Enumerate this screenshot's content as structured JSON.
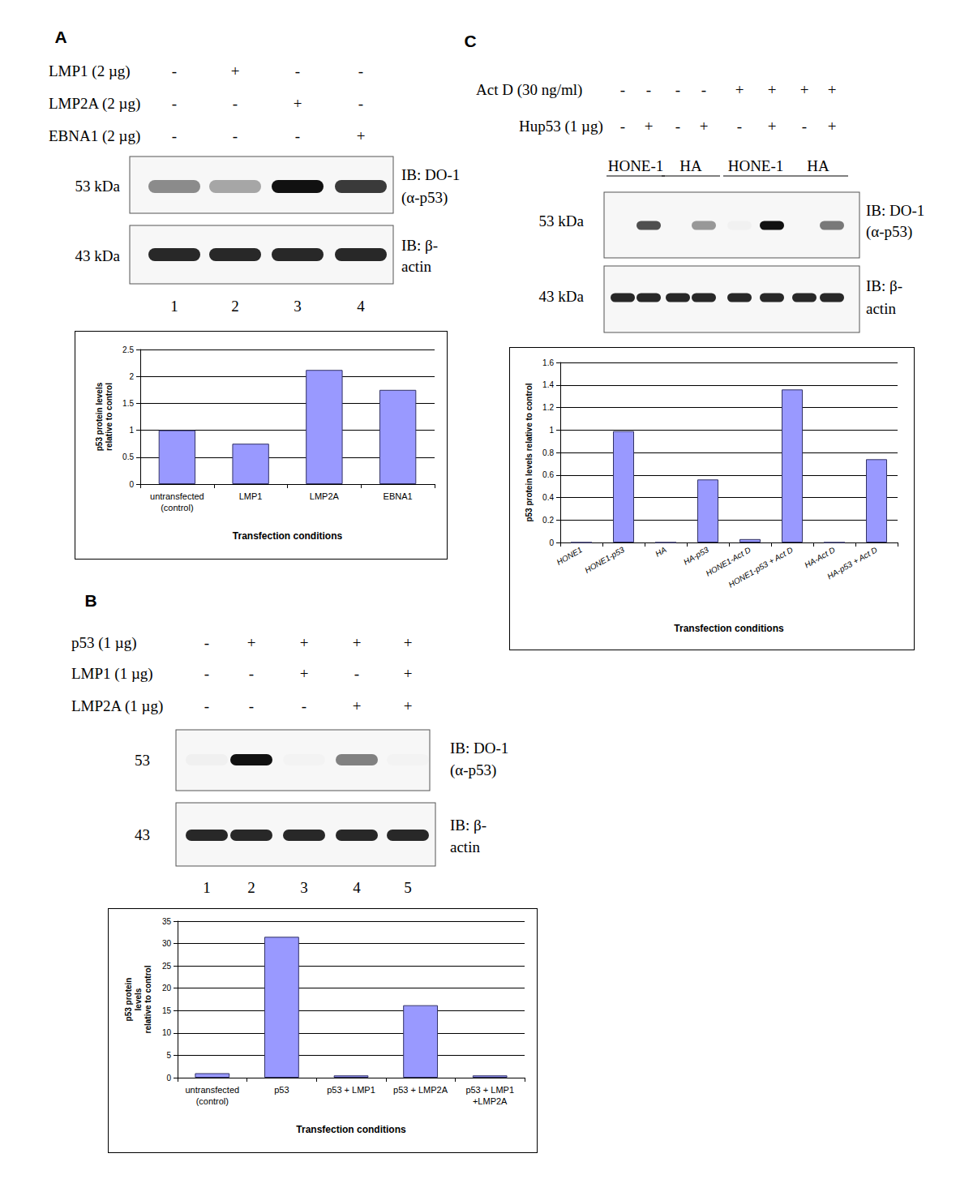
{
  "panels": [
    {
      "letter": "A",
      "treatments": [
        {
          "label": "LMP1  (2 µg)",
          "lanes": [
            "-",
            "+",
            "-",
            "-"
          ]
        },
        {
          "label": "LMP2A (2 µg)",
          "lanes": [
            "-",
            "-",
            "+",
            "-"
          ]
        },
        {
          "label": "EBNA1 (2 µg)",
          "lanes": [
            "-",
            "-",
            "-",
            "+"
          ]
        }
      ],
      "blot_rows": [
        {
          "size": "53 kDa",
          "antibody": [
            "IB: DO-1",
            "(α-p53)"
          ]
        },
        {
          "size": "43 kDa",
          "antibody": [
            "IB: β-",
            "actin"
          ]
        }
      ],
      "lane_numbers": [
        "1",
        "2",
        "3",
        "4"
      ]
    },
    {
      "letter": "B",
      "treatments": [
        {
          "label": "p53 (1 µg)",
          "lanes": [
            "-",
            "+",
            "+",
            "+",
            "+"
          ]
        },
        {
          "label": "LMP1 (1 µg)",
          "lanes": [
            "-",
            "-",
            "+",
            "-",
            "+"
          ]
        },
        {
          "label": "LMP2A (1 µg)",
          "lanes": [
            "-",
            "-",
            "-",
            "+",
            "+"
          ]
        }
      ],
      "blot_rows": [
        {
          "size": "53",
          "antibody": [
            "IB: DO-1",
            "(α-p53)"
          ]
        },
        {
          "size": "43",
          "antibody": [
            "IB: β-",
            "actin"
          ]
        }
      ],
      "lane_numbers": [
        "1",
        "2",
        "3",
        "4",
        "5"
      ]
    },
    {
      "letter": "C",
      "treatments": [
        {
          "label": "Act D (30 ng/ml)",
          "lanes": [
            "-",
            "-",
            "-",
            "-",
            "+",
            "+",
            "+",
            "+"
          ]
        },
        {
          "label": "Hup53 (1 µg)",
          "lanes": [
            "-",
            "+",
            "-",
            "+",
            "-",
            "+",
            "-",
            "+"
          ]
        }
      ],
      "groups": [
        {
          "label": "HONE-1",
          "lanes": [
            0,
            1
          ]
        },
        {
          "label": "HA",
          "lanes": [
            2,
            3
          ]
        },
        {
          "label": "HONE-1",
          "lanes": [
            4,
            5
          ]
        },
        {
          "label": "HA",
          "lanes": [
            6,
            7
          ]
        }
      ],
      "blot_rows": [
        {
          "size": "53 kDa",
          "antibody": [
            "IB: DO-1",
            "(α-p53)"
          ]
        },
        {
          "size": "43 kDa",
          "antibody": [
            "IB: β-",
            "actin"
          ]
        }
      ],
      "lane_numbers": []
    }
  ],
  "chart_data": [
    {
      "type": "bar",
      "categories": [
        "untransfected\n(control)",
        "LMP1",
        "LMP2A",
        "EBNA1"
      ],
      "values": [
        1,
        0.75,
        2.12,
        1.75
      ],
      "color": "#9999ff",
      "ylim": [
        0,
        2.5
      ],
      "yticks": [
        0,
        0.5,
        1,
        1.5,
        2,
        2.5
      ],
      "grid": true,
      "x_label": "Transfection conditions",
      "y_label": "p53 protein levels\nrelative to control"
    },
    {
      "type": "bar",
      "categories": [
        "untransfected\n(control)",
        "p53",
        "p53 + LMP1",
        "p53 + LMP2A",
        "p53 + LMP1\n+LMP2A"
      ],
      "values": [
        1,
        31.5,
        0.5,
        16.2,
        0.5
      ],
      "color": "#9999ff",
      "ylim": [
        0,
        35
      ],
      "yticks": [
        0,
        5,
        10,
        15,
        20,
        25,
        30,
        35
      ],
      "grid": true,
      "x_label": "Transfection conditions",
      "y_label": "p53 protein\nlevels\nrelative to control"
    },
    {
      "type": "bar",
      "categories": [
        "HONE1",
        "HONE1-p53",
        "HA",
        "HA-p53",
        "HONE1-Act D",
        "HONE1-p53 + Act D",
        "HA-Act D",
        "HA-p53 + Act D"
      ],
      "values": [
        0,
        0.99,
        0,
        0.56,
        0.03,
        1.36,
        0,
        0.74
      ],
      "color": "#9999ff",
      "ylim": [
        0,
        1.6
      ],
      "yticks": [
        0,
        0.2,
        0.4,
        0.6,
        0.8,
        1,
        1.2,
        1.4,
        1.6
      ],
      "grid": true,
      "x_label": "Transfection conditions",
      "y_label": "p53 protein levels relative to control"
    }
  ]
}
